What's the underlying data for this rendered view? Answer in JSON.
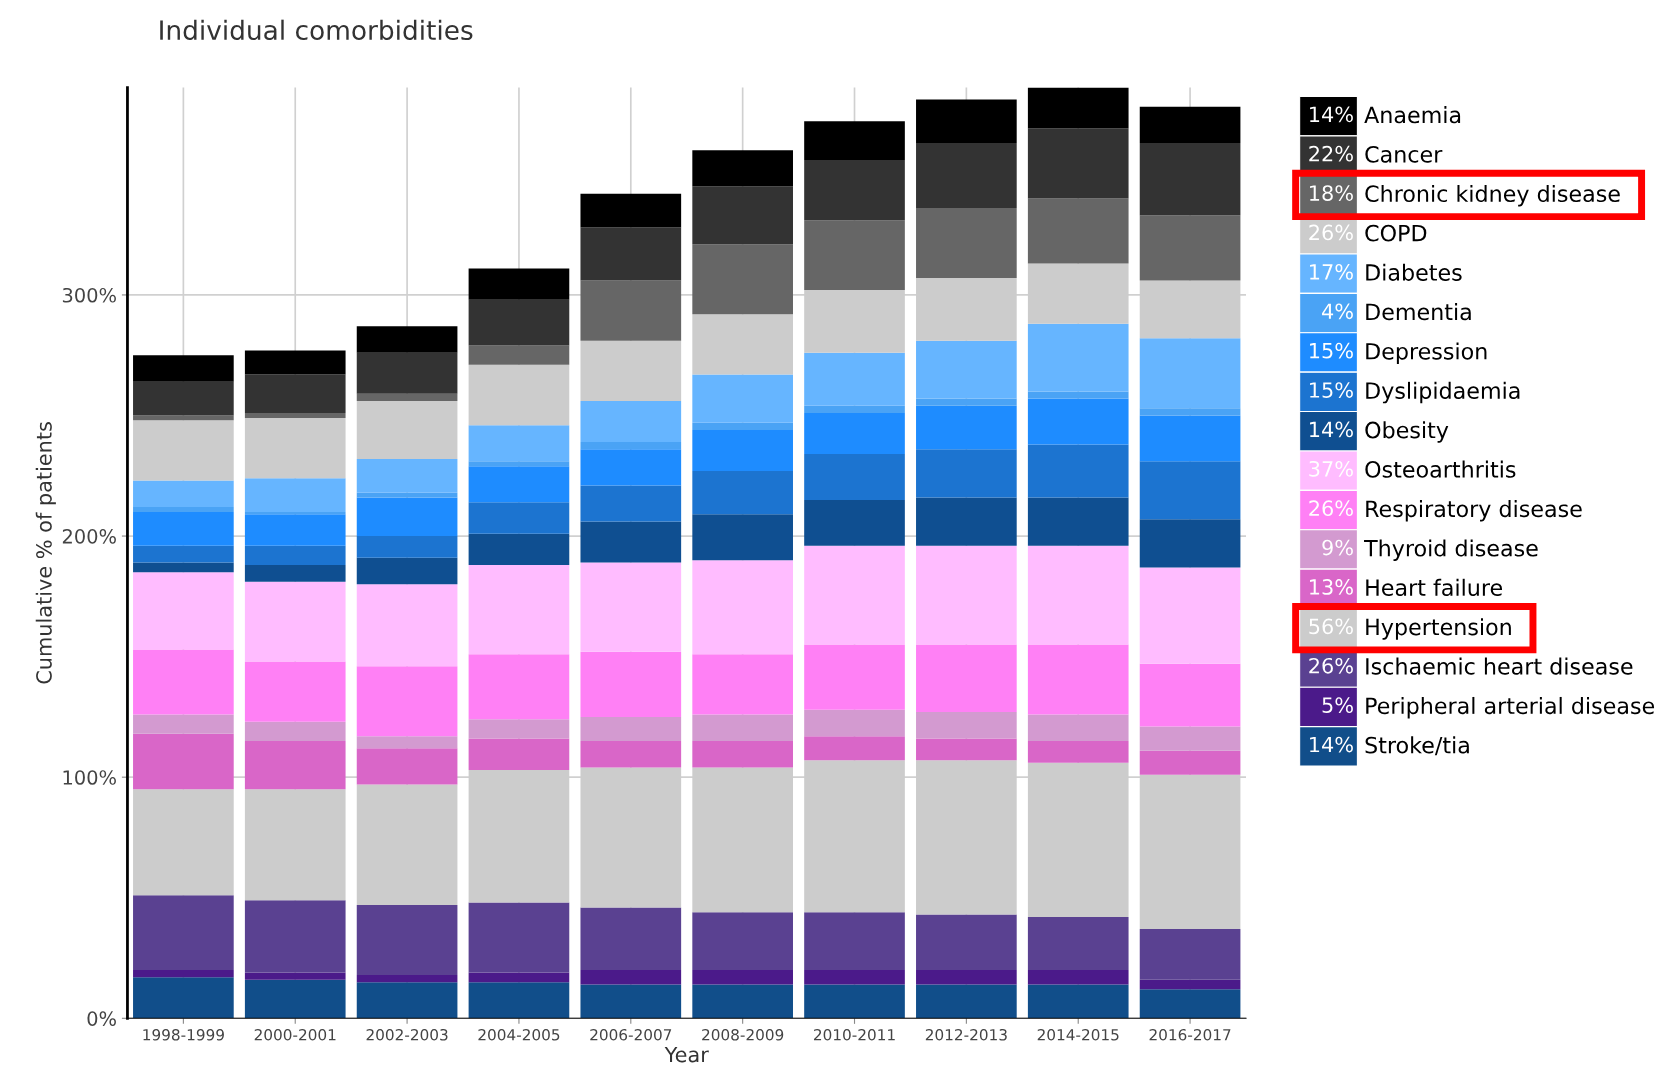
{
  "chart_data": {
    "type": "bar",
    "stacked": true,
    "title": "Individual comorbidities",
    "xlabel": "Year",
    "ylabel": "Cumulative % of patients",
    "categories": [
      "1998-1999",
      "2000-2001",
      "2002-2003",
      "2004-2005",
      "2006-2007",
      "2008-2009",
      "2010-2011",
      "2012-2013",
      "2014-2015",
      "2016-2017"
    ],
    "ylim": [
      0,
      386
    ],
    "yticks": [
      {
        "value": 0,
        "label": "0%"
      },
      {
        "value": 100,
        "label": "100%"
      },
      {
        "value": 200,
        "label": "200%"
      },
      {
        "value": 300,
        "label": "300%"
      }
    ],
    "grid": true,
    "legend": "right",
    "series": [
      {
        "name": "Stroke/tia",
        "color": "#114e8a",
        "values": [
          17,
          16,
          15,
          15,
          14,
          14,
          14,
          14,
          14,
          12
        ]
      },
      {
        "name": "Peripheral arterial disease",
        "color": "#4b1a8a",
        "values": [
          3,
          3,
          3,
          4,
          6,
          6,
          6,
          6,
          6,
          4
        ]
      },
      {
        "name": "Ischaemic heart disease",
        "color": "#5a4191",
        "values": [
          31,
          30,
          29,
          29,
          26,
          24,
          24,
          23,
          22,
          21
        ]
      },
      {
        "name": "Hypertension",
        "color": "#cccccc",
        "values": [
          44,
          46,
          50,
          55,
          58,
          60,
          63,
          64,
          64,
          64
        ]
      },
      {
        "name": "Heart failure",
        "color": "#d966c8",
        "values": [
          23,
          20,
          15,
          13,
          11,
          11,
          10,
          9,
          9,
          10
        ]
      },
      {
        "name": "Thyroid disease",
        "color": "#d39ad0",
        "values": [
          8,
          8,
          5,
          8,
          10,
          11,
          11,
          11,
          11,
          10
        ]
      },
      {
        "name": "Respiratory disease",
        "color": "#ff80f5",
        "values": [
          27,
          25,
          29,
          27,
          27,
          25,
          27,
          28,
          29,
          26
        ]
      },
      {
        "name": "Osteoarthritis",
        "color": "#ffbcff",
        "values": [
          32,
          33,
          34,
          37,
          37,
          39,
          41,
          41,
          41,
          40
        ]
      },
      {
        "name": "Obesity",
        "color": "#0f4f91",
        "values": [
          4,
          7,
          11,
          13,
          17,
          19,
          19,
          20,
          20,
          20
        ]
      },
      {
        "name": "Dyslipidaemia",
        "color": "#1c74d0",
        "values": [
          7,
          8,
          9,
          13,
          15,
          18,
          19,
          20,
          22,
          24
        ]
      },
      {
        "name": "Depression",
        "color": "#1e8cff",
        "values": [
          14,
          13,
          16,
          15,
          15,
          17,
          17,
          18,
          19,
          19
        ]
      },
      {
        "name": "Dementia",
        "color": "#4aa3f5",
        "values": [
          2,
          1,
          2,
          2,
          3,
          3,
          3,
          3,
          3,
          3
        ]
      },
      {
        "name": "Diabetes",
        "color": "#66b5ff",
        "values": [
          11,
          14,
          14,
          15,
          17,
          20,
          22,
          24,
          28,
          29
        ]
      },
      {
        "name": "COPD",
        "color": "#cccccc",
        "values": [
          25,
          25,
          24,
          25,
          25,
          25,
          26,
          26,
          25,
          24
        ]
      },
      {
        "name": "Chronic kidney disease",
        "color": "#666666",
        "values": [
          2,
          2,
          3,
          8,
          25,
          29,
          29,
          29,
          27,
          27
        ]
      },
      {
        "name": "Cancer",
        "color": "#333333",
        "values": [
          14,
          16,
          17,
          19,
          22,
          24,
          25,
          27,
          29,
          30
        ]
      },
      {
        "name": "Anaemia",
        "color": "#000000",
        "values": [
          11,
          10,
          11,
          13,
          14,
          15,
          16,
          18,
          17,
          15
        ]
      }
    ],
    "annotations": [
      "14%",
      "22%",
      "18%",
      "26%",
      "17%",
      "4%",
      "15%",
      "15%",
      "14%",
      "37%",
      "26%",
      "9%",
      "13%",
      "56%",
      "26%",
      "5%",
      "14%"
    ]
  }
}
